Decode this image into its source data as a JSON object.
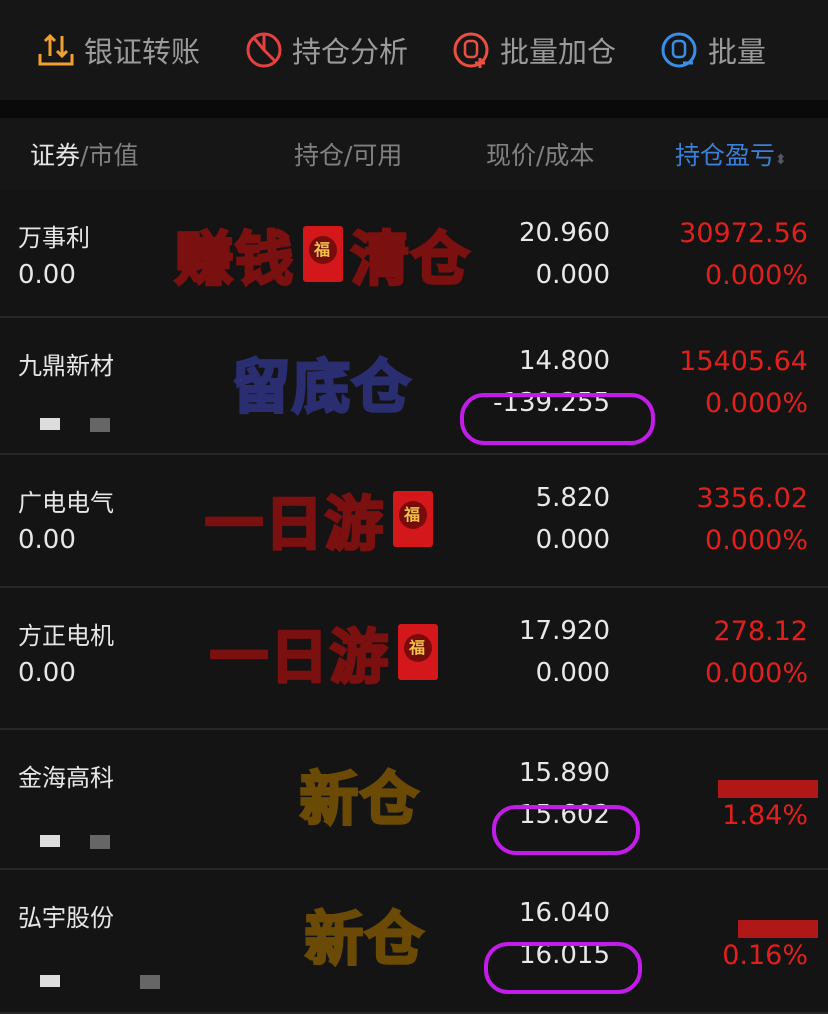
{
  "toolbar": [
    {
      "label": "银证转账",
      "icon": "transfer-icon",
      "color": "#f0a030"
    },
    {
      "label": "持仓分析",
      "icon": "pie-chart-icon",
      "color": "#e84040"
    },
    {
      "label": "批量加仓",
      "icon": "batch-add-icon",
      "color": "#e85040"
    },
    {
      "label": "批量",
      "icon": "batch-reduce-icon",
      "color": "#3a8ee8"
    }
  ],
  "columns": {
    "security": "证券",
    "market_value": "/市值",
    "position": "持仓/可用",
    "price": "现价/成本",
    "pnl": "持仓盈亏",
    "sort_icon": "sort-icon",
    "accent": "#3a7fd8"
  },
  "rows": [
    {
      "name": "万事利",
      "market_value": "0.00",
      "price": "20.960",
      "cost": "0.000",
      "pnl": "30972.56",
      "pnl_pct": "0.000%",
      "note": "赚钱",
      "note2": "清仓"
    },
    {
      "name": "九鼎新材",
      "market_value": "",
      "price": "14.800",
      "cost": "-139.255",
      "pnl": "15405.64",
      "pnl_pct": "0.000%",
      "note": "留底仓"
    },
    {
      "name": "广电电气",
      "market_value": "0.00",
      "price": "5.820",
      "cost": "0.000",
      "pnl": "3356.02",
      "pnl_pct": "0.000%",
      "note": "一日游"
    },
    {
      "name": "方正电机",
      "market_value": "0.00",
      "price": "17.920",
      "cost": "0.000",
      "pnl": "278.12",
      "pnl_pct": "0.000%",
      "note": "一日游"
    },
    {
      "name": "金海高科",
      "market_value": "",
      "price": "15.890",
      "cost": "15.602",
      "pnl": "",
      "pnl_pct": "1.84%",
      "note": "新仓"
    },
    {
      "name": "弘宇股份",
      "market_value": "",
      "price": "16.040",
      "cost": "16.015",
      "pnl": "",
      "pnl_pct": "0.16%",
      "note": "新仓"
    }
  ]
}
